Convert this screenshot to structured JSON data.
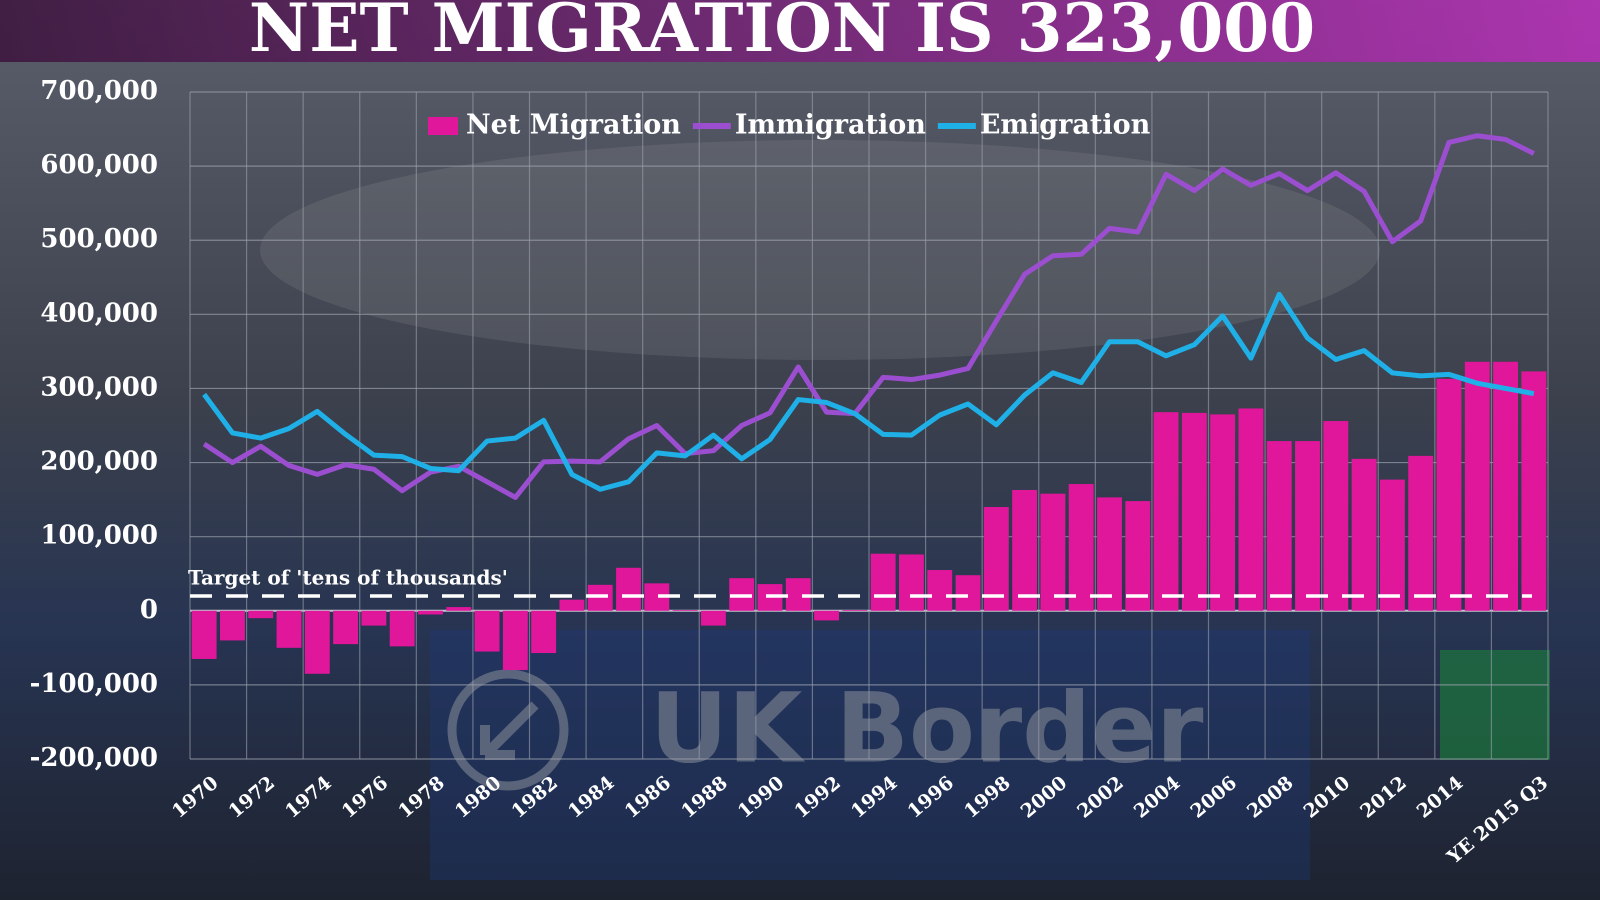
{
  "chart_data": {
    "type": "bar",
    "title": "NET MIGRATION IS 323,000",
    "background_text": "UK Border",
    "categories": [
      "1970",
      null,
      "1972",
      null,
      "1974",
      null,
      "1976",
      null,
      "1978",
      null,
      "1980",
      null,
      "1982",
      null,
      "1984",
      null,
      "1986",
      null,
      "1988",
      null,
      "1990",
      null,
      "1992",
      null,
      "1994",
      null,
      "1996",
      null,
      "1998",
      null,
      "2000",
      null,
      "2002",
      null,
      "2004",
      null,
      "2006",
      null,
      "2008",
      null,
      "2010",
      null,
      "2012",
      null,
      "2014",
      null,
      null,
      "YE 2015 Q3"
    ],
    "series": [
      {
        "name": "Net Migration",
        "type": "bar",
        "color": "#e0169b",
        "values": [
          -65000,
          -40000,
          -10000,
          -50000,
          -85000,
          -45000,
          -20000,
          -48000,
          -5000,
          5000,
          -55000,
          -80000,
          -57000,
          15000,
          35000,
          58000,
          37000,
          1000,
          -20000,
          44000,
          36000,
          44000,
          -13000,
          1000,
          77000,
          76000,
          55000,
          48000,
          140000,
          163000,
          158000,
          171000,
          153000,
          148000,
          268000,
          267000,
          265000,
          273000,
          229000,
          229000,
          256000,
          205000,
          177000,
          209000,
          313000,
          336000,
          336000,
          323000
        ]
      },
      {
        "name": "Immigration",
        "type": "line",
        "color": "#9b4fd0",
        "values": [
          225000,
          200000,
          222000,
          196000,
          184000,
          197000,
          191000,
          162000,
          187000,
          195000,
          174000,
          153000,
          201000,
          202000,
          201000,
          232000,
          250000,
          212000,
          216000,
          250000,
          267000,
          329000,
          268000,
          266000,
          315000,
          312000,
          318000,
          327000,
          391000,
          454000,
          479000,
          481000,
          516000,
          511000,
          589000,
          567000,
          596000,
          574000,
          590000,
          567000,
          591000,
          566000,
          498000,
          526000,
          632000,
          641000,
          636000,
          617000
        ]
      },
      {
        "name": "Emigration",
        "type": "line",
        "color": "#1fb0e8",
        "values": [
          292000,
          240000,
          233000,
          246000,
          269000,
          238000,
          210000,
          208000,
          192000,
          189000,
          229000,
          233000,
          257000,
          184000,
          164000,
          174000,
          213000,
          209000,
          237000,
          205000,
          231000,
          285000,
          281000,
          266000,
          238000,
          237000,
          264000,
          279000,
          251000,
          291000,
          321000,
          308000,
          363000,
          363000,
          344000,
          359000,
          398000,
          341000,
          427000,
          368000,
          339000,
          351000,
          321000,
          317000,
          319000,
          307000,
          300000,
          293000
        ]
      }
    ],
    "target_line": {
      "label": "Target of 'tens of thousands'",
      "value": 20000
    },
    "ylim": [
      -200000,
      700000
    ],
    "yticks": [
      {
        "value": -200000,
        "label": "-200,000"
      },
      {
        "value": -100000,
        "label": "-100,000"
      },
      0,
      {
        "value": 100000,
        "label": "100,000"
      },
      {
        "value": 200000,
        "label": "200,000"
      },
      {
        "value": 300000,
        "label": "300,000"
      },
      {
        "value": 400000,
        "label": "400,000"
      },
      {
        "value": 500000,
        "label": "500,000"
      },
      {
        "value": 600000,
        "label": "600,000"
      },
      {
        "value": 700000,
        "label": "700,000"
      }
    ],
    "grid": true,
    "legend": "top"
  }
}
